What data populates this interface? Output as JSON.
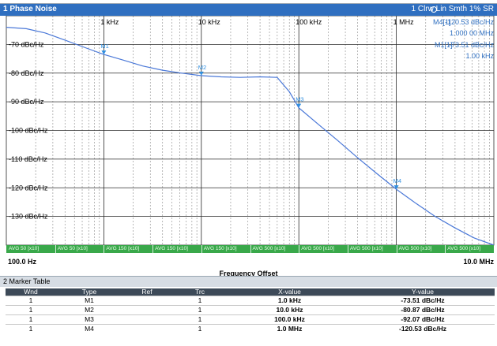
{
  "window_title": "1 Phase Noise",
  "trace_status": "1 Clrw Lin Smth 1% SR",
  "colors": {
    "trace": "#4a78d8",
    "titlebar": "#2f6fc0",
    "avg_strip": "#39a84a",
    "table_header": "#3d4a58"
  },
  "marker_readout": {
    "m4_label": "M4[1]",
    "m4_level": "-120.53 dBc/Hz",
    "m4_freq": "1.000 00 MHz",
    "m1_label": "M1[1]",
    "m1_level": "-73.51 dBc/Hz",
    "m1_freq": "1.00 kHz"
  },
  "avg_strip": [
    "AVG 50 [x10]",
    "AVG 50 [x10]",
    "AVG 150 [x10]",
    "AVG 150 [x10]",
    "AVG 150 [x10]",
    "AVG 500 [x10]",
    "AVG 500 [x10]",
    "AVG 500 [x10]",
    "AVG 500 [x10]",
    "AVG 500 [x10]"
  ],
  "x_axis": {
    "start": "100.0 Hz",
    "stop": "10.0 MHz",
    "label": "Frequency Offset"
  },
  "marker_table": {
    "title": "2 Marker Table",
    "headers": [
      "Wnd",
      "Type",
      "Ref",
      "Trc",
      "X-value",
      "Y-value"
    ],
    "rows": [
      {
        "wnd": "1",
        "type": "M1",
        "ref": "",
        "trc": "1",
        "x": "1.0 kHz",
        "y": "-73.51 dBc/Hz"
      },
      {
        "wnd": "1",
        "type": "M2",
        "ref": "",
        "trc": "1",
        "x": "10.0 kHz",
        "y": "-80.87 dBc/Hz"
      },
      {
        "wnd": "1",
        "type": "M3",
        "ref": "",
        "trc": "1",
        "x": "100.0 kHz",
        "y": "-92.07 dBc/Hz"
      },
      {
        "wnd": "1",
        "type": "M4",
        "ref": "",
        "trc": "1",
        "x": "1.0 MHz",
        "y": "-120.53 dBc/Hz"
      }
    ]
  },
  "chart_data": {
    "type": "line",
    "x_scale": "log",
    "xlim": [
      100,
      10000000
    ],
    "ylim": [
      -140,
      -60
    ],
    "x_ticks": [
      {
        "value": 1000,
        "label": "1 kHz"
      },
      {
        "value": 10000,
        "label": "10 kHz"
      },
      {
        "value": 100000,
        "label": "100 kHz"
      },
      {
        "value": 1000000,
        "label": "1 MHz"
      }
    ],
    "y_ticks": [
      {
        "value": -70,
        "label": "-70 dBc/Hz"
      },
      {
        "value": -80,
        "label": "-80 dBc/Hz"
      },
      {
        "value": -90,
        "label": "-90 dBc/Hz"
      },
      {
        "value": -100,
        "label": "-100 dBc/Hz"
      },
      {
        "value": -110,
        "label": "-110 dBc/Hz"
      },
      {
        "value": -120,
        "label": "-120 dBc/Hz"
      },
      {
        "value": -130,
        "label": "-130 dBc/Hz"
      }
    ],
    "grid": true,
    "series": [
      {
        "x": [
          100,
          160,
          250,
          400,
          630,
          1000,
          1600,
          2500,
          4000,
          6300,
          10000,
          16000,
          25000,
          40000,
          60000,
          80000,
          100000,
          160000,
          250000,
          400000,
          630000,
          1000000,
          1600000,
          2500000,
          4000000,
          6300000,
          10000000
        ],
        "values": [
          -64.0,
          -64.5,
          -66.0,
          -68.5,
          -71.0,
          -73.5,
          -75.5,
          -77.5,
          -79.0,
          -80.0,
          -80.9,
          -81.3,
          -81.5,
          -81.3,
          -81.5,
          -86.5,
          -92.1,
          -98.0,
          -103.5,
          -109.5,
          -115.0,
          -120.5,
          -125.5,
          -130.0,
          -134.0,
          -137.5,
          -140.0
        ]
      }
    ],
    "markers": [
      {
        "label": "M1",
        "x": 1000,
        "y": -73.51
      },
      {
        "label": "M2",
        "x": 10000,
        "y": -80.87
      },
      {
        "label": "M3",
        "x": 100000,
        "y": -92.07
      },
      {
        "label": "M4",
        "x": 1000000,
        "y": -120.53
      }
    ]
  }
}
